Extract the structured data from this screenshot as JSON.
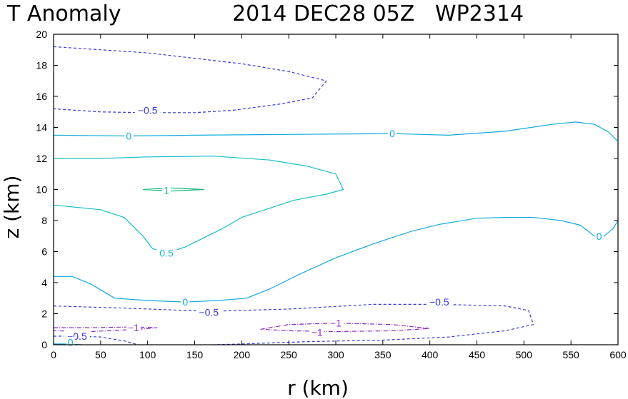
{
  "chart_data": {
    "type": "contour",
    "title_left": "T Anomaly",
    "title_right": "2014 DEC28 05Z   WP2314",
    "xlabel": "r (km)",
    "ylabel": "z (km)",
    "xlim": [
      0,
      600
    ],
    "ylim": [
      0,
      20
    ],
    "x_ticks": [
      0,
      50,
      100,
      150,
      200,
      250,
      300,
      350,
      400,
      450,
      500,
      550,
      600
    ],
    "y_ticks": [
      0,
      2,
      4,
      6,
      8,
      10,
      12,
      14,
      16,
      18,
      20
    ],
    "contours": [
      {
        "level": -0.5,
        "style": "dashed",
        "color": "#3838d8",
        "label": "−0.5",
        "label_at": [
          100,
          15.1
        ],
        "points": [
          [
            0,
            19.2
          ],
          [
            100,
            18.8
          ],
          [
            200,
            18.1
          ],
          [
            250,
            17.6
          ],
          [
            290,
            17.0
          ],
          [
            275,
            15.9
          ],
          [
            240,
            15.5
          ],
          [
            190,
            15.1
          ],
          [
            150,
            14.95
          ],
          [
            100,
            14.95
          ],
          [
            50,
            15.0
          ],
          [
            0,
            15.2
          ]
        ]
      },
      {
        "level": 0,
        "style": "solid",
        "color": "#12aadc",
        "label": "0",
        "label_at": [
          80,
          13.45
        ],
        "points": [
          [
            0,
            13.5
          ],
          [
            80,
            13.45
          ],
          [
            150,
            13.5
          ],
          [
            250,
            13.55
          ],
          [
            360,
            13.6
          ],
          [
            420,
            13.5
          ],
          [
            480,
            13.75
          ],
          [
            530,
            14.2
          ],
          [
            555,
            14.35
          ],
          [
            575,
            14.2
          ],
          [
            590,
            13.7
          ],
          [
            600,
            13.1
          ]
        ]
      },
      {
        "level": 0,
        "style": "none",
        "color": "#12aadc",
        "label": "0",
        "label_at": [
          360,
          13.6
        ],
        "points": []
      },
      {
        "level": 0.5,
        "style": "solid",
        "color": "#18bfc4",
        "label": "",
        "label_at": null,
        "points": [
          [
            0,
            12.0
          ],
          [
            50,
            12.0
          ],
          [
            100,
            12.1
          ],
          [
            170,
            12.15
          ],
          [
            230,
            11.9
          ],
          [
            270,
            11.5
          ],
          [
            300,
            11.0
          ],
          [
            308,
            10.0
          ],
          [
            290,
            9.7
          ],
          [
            255,
            9.3
          ],
          [
            230,
            8.8
          ],
          [
            200,
            8.2
          ],
          [
            180,
            7.5
          ],
          [
            160,
            6.9
          ],
          [
            140,
            6.3
          ],
          [
            120,
            5.9
          ],
          [
            105,
            6.2
          ],
          [
            95,
            7.0
          ],
          [
            75,
            8.2
          ],
          [
            50,
            8.7
          ],
          [
            0,
            9.0
          ]
        ]
      },
      {
        "level": 0.5,
        "style": "none",
        "color": "#18bfc4",
        "label": "0.5",
        "label_at": [
          120,
          5.9
        ],
        "points": []
      },
      {
        "level": 1,
        "style": "solid",
        "color": "#15ba7a",
        "label": "1",
        "label_at": [
          120,
          9.95
        ],
        "points": [
          [
            95,
            10.0
          ],
          [
            125,
            10.1
          ],
          [
            160,
            10.0
          ],
          [
            125,
            9.9
          ],
          [
            95,
            10.0
          ]
        ]
      },
      {
        "level": 0,
        "style": "solid",
        "color": "#12aadc",
        "label": "0",
        "label_at": [
          140,
          2.75
        ],
        "points": [
          [
            0,
            4.4
          ],
          [
            20,
            4.4
          ],
          [
            40,
            3.9
          ],
          [
            65,
            3.0
          ],
          [
            100,
            2.85
          ],
          [
            140,
            2.75
          ],
          [
            175,
            2.85
          ],
          [
            205,
            3.0
          ],
          [
            230,
            3.6
          ],
          [
            260,
            4.5
          ],
          [
            300,
            5.6
          ],
          [
            340,
            6.5
          ],
          [
            380,
            7.3
          ],
          [
            410,
            7.75
          ],
          [
            450,
            8.15
          ],
          [
            480,
            8.2
          ],
          [
            510,
            8.2
          ],
          [
            540,
            8.0
          ],
          [
            560,
            7.7
          ],
          [
            575,
            7.0
          ],
          [
            585,
            7.0
          ],
          [
            595,
            7.5
          ],
          [
            600,
            8.0
          ]
        ]
      },
      {
        "level": 0,
        "style": "none",
        "color": "#12aadc",
        "label": "0",
        "label_at": [
          580,
          7.0
        ],
        "points": []
      },
      {
        "level": -0.5,
        "style": "dashed",
        "color": "#3838d8",
        "label": "−0.5",
        "label_at": [
          165,
          2.1
        ],
        "points": [
          [
            0,
            2.5
          ],
          [
            80,
            2.35
          ],
          [
            165,
            2.15
          ],
          [
            250,
            2.3
          ],
          [
            340,
            2.6
          ],
          [
            410,
            2.6
          ],
          [
            480,
            2.5
          ],
          [
            505,
            2.2
          ],
          [
            510,
            1.3
          ],
          [
            480,
            0.9
          ],
          [
            420,
            0.5
          ],
          [
            350,
            0.3
          ],
          [
            270,
            0.2
          ],
          [
            200,
            0.05
          ],
          [
            170,
            0.0
          ]
        ]
      },
      {
        "level": -0.5,
        "style": "none",
        "color": "#3838d8",
        "label": "−0.5",
        "label_at": [
          410,
          2.75
        ],
        "points": []
      },
      {
        "level": -0.5,
        "style": "dashed",
        "color": "#3838d8",
        "label": "−0.5",
        "label_at": [
          25,
          0.55
        ],
        "points": [
          [
            0,
            0.55
          ],
          [
            20,
            0.55
          ],
          [
            50,
            0.5
          ],
          [
            75,
            0.25
          ],
          [
            90,
            0.0
          ]
        ]
      },
      {
        "level": -1,
        "style": "dashdot",
        "color": "#8a2cbf",
        "label": "−1",
        "label_at": [
          85,
          1.1
        ],
        "points": [
          [
            0,
            1.1
          ],
          [
            40,
            1.1
          ],
          [
            85,
            1.15
          ],
          [
            110,
            1.1
          ],
          [
            90,
            1.0
          ],
          [
            40,
            0.85
          ],
          [
            0,
            0.9
          ]
        ]
      },
      {
        "level": -1,
        "style": "dashdot",
        "color": "#8a2cbf",
        "label": "−1",
        "label_at": [
          300,
          1.4
        ],
        "points": [
          [
            220,
            1.0
          ],
          [
            250,
            1.3
          ],
          [
            300,
            1.4
          ],
          [
            360,
            1.3
          ],
          [
            400,
            1.05
          ],
          [
            360,
            0.9
          ],
          [
            300,
            0.85
          ],
          [
            250,
            0.9
          ],
          [
            220,
            1.0
          ]
        ]
      },
      {
        "level": -1,
        "style": "none",
        "color": "#8a2cbf",
        "label": "−1",
        "label_at": [
          280,
          0.8
        ],
        "points": []
      },
      {
        "level": 0,
        "style": "solid",
        "color": "#12aadc",
        "label": "0",
        "label_at": [
          18,
          0.15
        ],
        "points": [
          [
            0,
            0.05
          ],
          [
            15,
            0.05
          ],
          [
            30,
            0.0
          ]
        ]
      }
    ]
  }
}
